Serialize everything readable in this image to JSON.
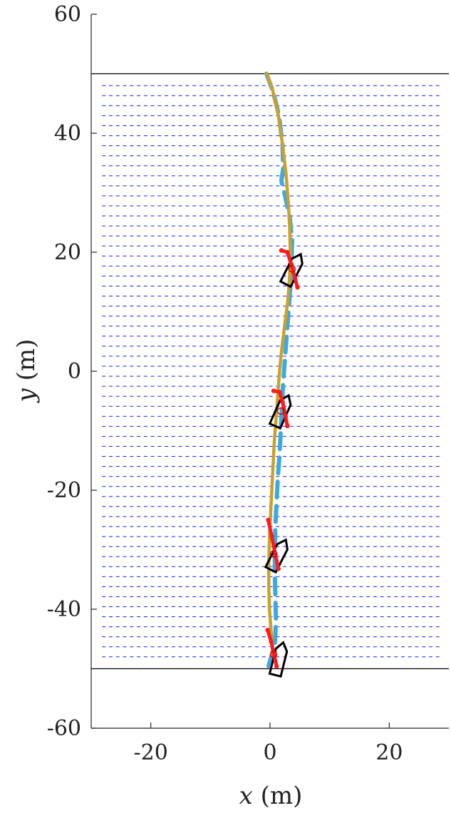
{
  "chart_data": {
    "type": "line",
    "xlabel": {
      "var": "x",
      "unit": "(m)"
    },
    "ylabel": {
      "var": "y",
      "unit": "(m)"
    },
    "xlim": [
      -30,
      30
    ],
    "ylim": [
      -60,
      60
    ],
    "x_ticks": [
      -20,
      0,
      20
    ],
    "y_ticks": [
      -60,
      -40,
      -20,
      0,
      20,
      40,
      60
    ],
    "grid": false,
    "legend": "none",
    "boundaries": {
      "y": [
        50,
        -50
      ],
      "color": "#000000"
    },
    "current_field": {
      "color": "#1a1aff",
      "x_range": [
        -28,
        28
      ],
      "y_range": [
        -48,
        48
      ],
      "rows": 58,
      "cols": 49,
      "direction": "+x"
    },
    "series": [
      {
        "style": "solid",
        "color": "#c9a227",
        "x": [
          -0.5,
          0.5,
          1.4,
          2.1,
          2.7,
          3.1,
          3.3,
          3.4,
          3.3,
          3.0,
          2.5,
          2.0,
          1.6,
          1.3,
          1.0,
          0.7,
          0.5,
          0.3,
          0.1,
          -0.1,
          -0.2,
          -0.2,
          -0.1,
          0.2,
          0.5
        ],
        "y": [
          50,
          47,
          43,
          38,
          33,
          28,
          24,
          20,
          16,
          12,
          8,
          4,
          0,
          -4,
          -8,
          -12,
          -16,
          -20,
          -24,
          -28,
          -32,
          -36,
          -40,
          -44,
          -48
        ]
      },
      {
        "style": "dashed",
        "color": "#3da9e3",
        "x": [
          -0.6,
          0.5,
          1.5,
          2.1,
          2.2,
          1.9,
          2.4,
          3.3,
          3.7,
          3.6,
          3.4,
          3.1,
          2.8,
          2.5,
          2.2,
          2.0,
          1.8,
          1.6,
          1.3,
          1.1,
          0.9,
          0.8,
          0.8,
          0.9,
          1.0,
          0.8,
          -0.4
        ],
        "y": [
          50,
          47,
          43,
          38,
          34,
          32,
          30,
          26,
          22,
          18,
          14,
          10,
          6,
          2,
          -2,
          -6,
          -10,
          -14,
          -18,
          -22,
          -26,
          -30,
          -34,
          -38,
          -42,
          -46,
          -50
        ]
      }
    ],
    "vessels": [
      {
        "x": 1.5,
        "y": -48.5,
        "heading_deg": 14
      },
      {
        "x": 1.3,
        "y": -31.0,
        "heading_deg": 27
      },
      {
        "x": 1.9,
        "y": -6.8,
        "heading_deg": 24
      },
      {
        "x": 3.8,
        "y": 17.0,
        "heading_deg": 27
      }
    ],
    "vessel_color": "#000000",
    "waypoints": [
      {
        "x": 0.6,
        "y": -47.6
      },
      {
        "x": 0.6,
        "y": -30.7
      },
      {
        "x": 1.8,
        "y": -6.7
      },
      {
        "x": 3.7,
        "y": 17.2
      }
    ],
    "waypoint_color": "#c00000",
    "predictions": [
      {
        "x": [
          -0.4,
          0.2,
          0.7,
          1.1
        ],
        "y": [
          -43.5,
          -45.5,
          -47.8,
          -49.6
        ]
      },
      {
        "x": [
          -0.3,
          0.3,
          0.9,
          1.4
        ],
        "y": [
          -25.0,
          -27.8,
          -30.8,
          -33.2
        ]
      },
      {
        "x": [
          0.6,
          1.6,
          2.1,
          2.6,
          2.9
        ],
        "y": [
          -3.3,
          -3.5,
          -5.2,
          -7.6,
          -9.2
        ]
      },
      {
        "x": [
          1.9,
          2.9,
          3.6,
          4.2,
          4.6
        ],
        "y": [
          20.3,
          20.0,
          17.9,
          15.6,
          14.1
        ]
      }
    ],
    "prediction_color": "#ff1a1a"
  }
}
